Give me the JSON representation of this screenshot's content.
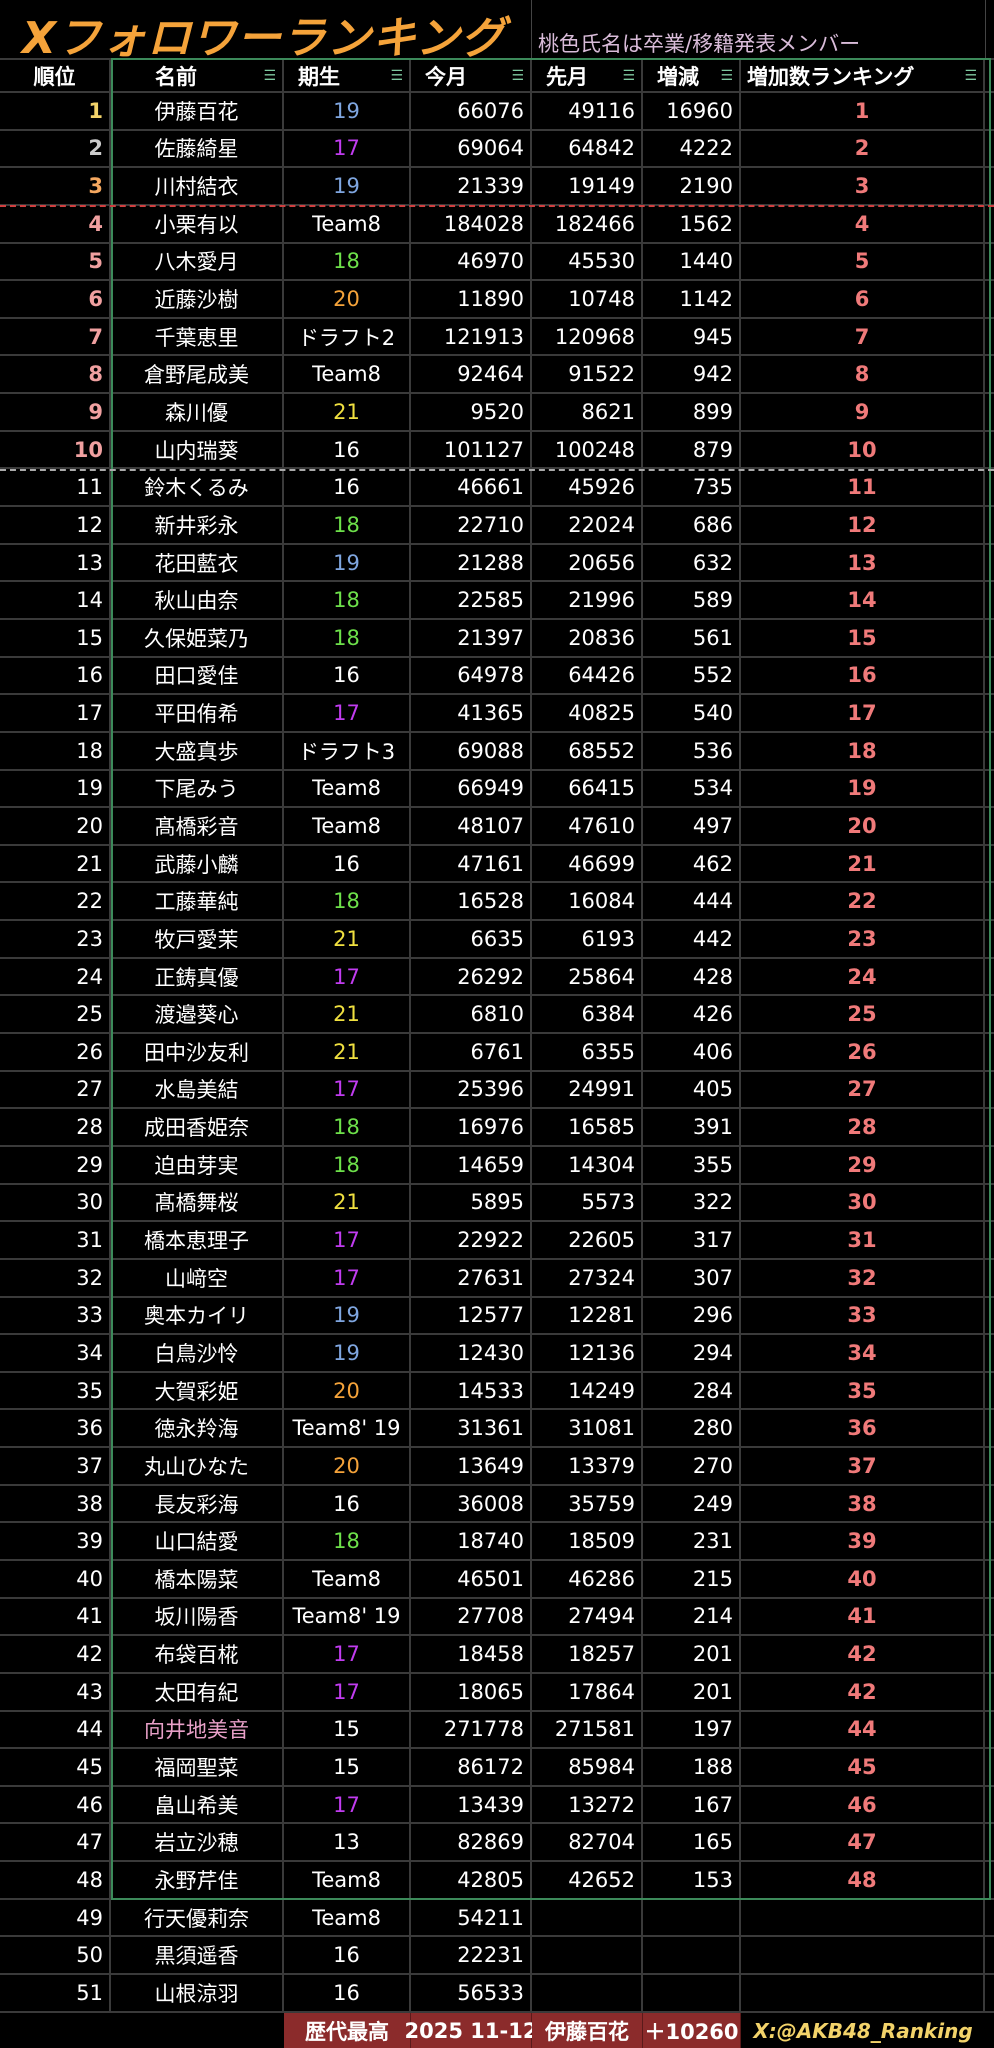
{
  "title": "Xフォロワーランキング",
  "subtitle": "桃色氏名は卒業/移籍発表メンバー",
  "headers": [
    "順位",
    "名前",
    "期生",
    "今月",
    "先月",
    "増減",
    "増加数ランキング"
  ],
  "colors": {
    "gen_16": "#ffffff",
    "gen_17": "#c13cf0",
    "gen_18": "#6de04a",
    "gen_19": "#7fa6e0",
    "gen_20": "#f5a33a",
    "gen_21": "#f0e040",
    "rank1": "#f3d36a",
    "rank2": "#cccccc",
    "rank3": "#f5a860",
    "top10": "#f0a0a0",
    "ranking": "#f07a7a",
    "graduated": "#e8a0c8",
    "accent": "#f5a33a",
    "border": "#3c8a5a"
  },
  "rows": [
    [
      "1",
      "伊藤百花",
      "19",
      "66076",
      "49116",
      "16960",
      "1"
    ],
    [
      "2",
      "佐藤綺星",
      "17",
      "69064",
      "64842",
      "4222",
      "2"
    ],
    [
      "3",
      "川村結衣",
      "19",
      "21339",
      "19149",
      "2190",
      "3"
    ],
    [
      "4",
      "小栗有以",
      "Team8",
      "184028",
      "182466",
      "1562",
      "4"
    ],
    [
      "5",
      "八木愛月",
      "18",
      "46970",
      "45530",
      "1440",
      "5"
    ],
    [
      "6",
      "近藤沙樹",
      "20",
      "11890",
      "10748",
      "1142",
      "6"
    ],
    [
      "7",
      "千葉恵里",
      "ドラフト2",
      "121913",
      "120968",
      "945",
      "7"
    ],
    [
      "8",
      "倉野尾成美",
      "Team8",
      "92464",
      "91522",
      "942",
      "8"
    ],
    [
      "9",
      "森川優",
      "21",
      "9520",
      "8621",
      "899",
      "9"
    ],
    [
      "10",
      "山内瑞葵",
      "16",
      "101127",
      "100248",
      "879",
      "10"
    ],
    [
      "11",
      "鈴木くるみ",
      "16",
      "46661",
      "45926",
      "735",
      "11"
    ],
    [
      "12",
      "新井彩永",
      "18",
      "22710",
      "22024",
      "686",
      "12"
    ],
    [
      "13",
      "花田藍衣",
      "19",
      "21288",
      "20656",
      "632",
      "13"
    ],
    [
      "14",
      "秋山由奈",
      "18",
      "22585",
      "21996",
      "589",
      "14"
    ],
    [
      "15",
      "久保姫菜乃",
      "18",
      "21397",
      "20836",
      "561",
      "15"
    ],
    [
      "16",
      "田口愛佳",
      "16",
      "64978",
      "64426",
      "552",
      "16"
    ],
    [
      "17",
      "平田侑希",
      "17",
      "41365",
      "40825",
      "540",
      "17"
    ],
    [
      "18",
      "大盛真歩",
      "ドラフト3",
      "69088",
      "68552",
      "536",
      "18"
    ],
    [
      "19",
      "下尾みう",
      "Team8",
      "66949",
      "66415",
      "534",
      "19"
    ],
    [
      "20",
      "髙橋彩音",
      "Team8",
      "48107",
      "47610",
      "497",
      "20"
    ],
    [
      "21",
      "武藤小麟",
      "16",
      "47161",
      "46699",
      "462",
      "21"
    ],
    [
      "22",
      "工藤華純",
      "18",
      "16528",
      "16084",
      "444",
      "22"
    ],
    [
      "23",
      "牧戸愛茉",
      "21",
      "6635",
      "6193",
      "442",
      "23"
    ],
    [
      "24",
      "正鋳真優",
      "17",
      "26292",
      "25864",
      "428",
      "24"
    ],
    [
      "25",
      "渡邉葵心",
      "21",
      "6810",
      "6384",
      "426",
      "25"
    ],
    [
      "26",
      "田中沙友利",
      "21",
      "6761",
      "6355",
      "406",
      "26"
    ],
    [
      "27",
      "水島美結",
      "17",
      "25396",
      "24991",
      "405",
      "27"
    ],
    [
      "28",
      "成田香姫奈",
      "18",
      "16976",
      "16585",
      "391",
      "28"
    ],
    [
      "29",
      "迫由芽実",
      "18",
      "14659",
      "14304",
      "355",
      "29"
    ],
    [
      "30",
      "髙橋舞桜",
      "21",
      "5895",
      "5573",
      "322",
      "30"
    ],
    [
      "31",
      "橋本恵理子",
      "17",
      "22922",
      "22605",
      "317",
      "31"
    ],
    [
      "32",
      "山﨑空",
      "17",
      "27631",
      "27324",
      "307",
      "32"
    ],
    [
      "33",
      "奥本カイリ",
      "19",
      "12577",
      "12281",
      "296",
      "33"
    ],
    [
      "34",
      "白鳥沙怜",
      "19",
      "12430",
      "12136",
      "294",
      "34"
    ],
    [
      "35",
      "大賀彩姫",
      "20",
      "14533",
      "14249",
      "284",
      "35"
    ],
    [
      "36",
      "徳永羚海",
      "Team8' 19",
      "31361",
      "31081",
      "280",
      "36"
    ],
    [
      "37",
      "丸山ひなた",
      "20",
      "13649",
      "13379",
      "270",
      "37"
    ],
    [
      "38",
      "長友彩海",
      "16",
      "36008",
      "35759",
      "249",
      "38"
    ],
    [
      "39",
      "山口結愛",
      "18",
      "18740",
      "18509",
      "231",
      "39"
    ],
    [
      "40",
      "橋本陽菜",
      "Team8",
      "46501",
      "46286",
      "215",
      "40"
    ],
    [
      "41",
      "坂川陽香",
      "Team8' 19",
      "27708",
      "27494",
      "214",
      "41"
    ],
    [
      "42",
      "布袋百椛",
      "17",
      "18458",
      "18257",
      "201",
      "42"
    ],
    [
      "43",
      "太田有紀",
      "17",
      "18065",
      "17864",
      "201",
      "42"
    ],
    [
      "44",
      "向井地美音",
      "15",
      "271778",
      "271581",
      "197",
      "44"
    ],
    [
      "45",
      "福岡聖菜",
      "15",
      "86172",
      "85984",
      "188",
      "45"
    ],
    [
      "46",
      "畠山希美",
      "17",
      "13439",
      "13272",
      "167",
      "46"
    ],
    [
      "47",
      "岩立沙穂",
      "13",
      "82869",
      "82704",
      "165",
      "47"
    ],
    [
      "48",
      "永野芹佳",
      "Team8",
      "42805",
      "42652",
      "153",
      "48"
    ],
    [
      "49",
      "行天優莉奈",
      "Team8",
      "54211",
      "",
      "",
      ""
    ],
    [
      "50",
      "黒須遥香",
      "16",
      "22231",
      "",
      "",
      ""
    ],
    [
      "51",
      "山根涼羽",
      "16",
      "56533",
      "",
      "",
      ""
    ]
  ],
  "graduated_rows": [
    "44"
  ],
  "footer": {
    "label": "歴代最高",
    "date": "2025 11-12",
    "name": "伊藤百花",
    "value": "＋10260",
    "credit": "X:@AKB48_Ranking"
  }
}
